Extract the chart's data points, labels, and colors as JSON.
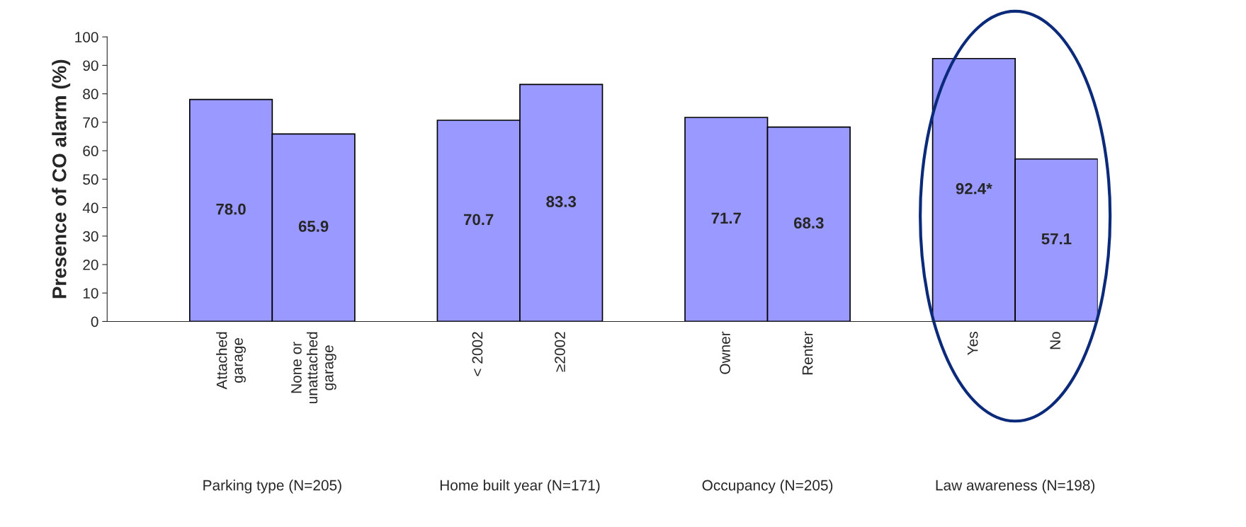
{
  "chart_data": {
    "type": "bar",
    "ylabel": "Presence of CO alarm (%)",
    "categories": [
      null,
      "Attached\ngarage",
      "None or\nunattached\ngarage",
      null,
      "< 2002",
      "≥2002",
      null,
      "Owner",
      "Renter",
      null,
      "Yes",
      "No"
    ],
    "values": [
      null,
      78.0,
      65.9,
      null,
      70.7,
      83.3,
      null,
      71.7,
      68.3,
      null,
      92.4,
      57.1
    ],
    "value_labels": [
      null,
      "78.0",
      "65.9",
      null,
      "70.7",
      "83.3",
      null,
      "71.7",
      "68.3",
      null,
      "92.4*",
      "57.1"
    ],
    "color": "#9999ff",
    "ylim": [
      0,
      100
    ],
    "yticks": [
      0,
      10,
      20,
      30,
      40,
      50,
      60,
      70,
      80,
      90,
      100
    ],
    "grid": false,
    "legend": false,
    "annotations": [
      "Parking type (N=205)",
      "Home built year (N=171)",
      "Occupancy (N=205)",
      "Law awareness (N=198)"
    ]
  }
}
